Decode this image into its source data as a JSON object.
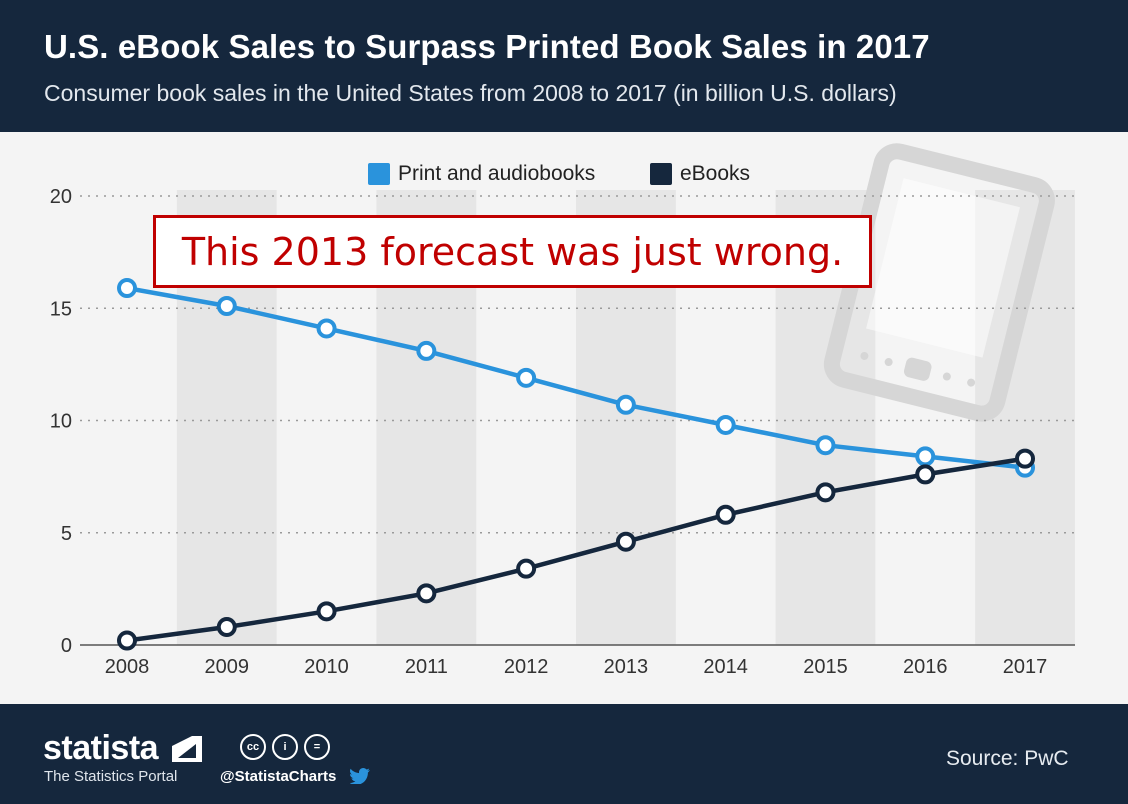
{
  "header": {
    "title": "U.S. eBook Sales to Surpass Printed Book Sales in 2017",
    "subtitle": "Consumer book sales in the United States from 2008 to 2017 (in billion U.S. dollars)"
  },
  "annotation": {
    "text": "This 2013 forecast was just wrong."
  },
  "colors": {
    "print": "#2a93dc",
    "ebooks": "#15273d",
    "header_bg": "#15273d",
    "annotation": "#c00000",
    "stripe": "#e6e6e6",
    "plot_bg": "#f4f4f4"
  },
  "chart_data": {
    "type": "line",
    "title": "U.S. eBook Sales to Surpass Printed Book Sales in 2017",
    "xlabel": "",
    "ylabel": "",
    "ylim": [
      0,
      20
    ],
    "yticks": [
      "0",
      "5",
      "10",
      "15",
      "20"
    ],
    "categories": [
      "2008",
      "2009",
      "2010",
      "2011",
      "2012",
      "2013",
      "2014",
      "2015",
      "2016",
      "2017"
    ],
    "legend_position": "top-center",
    "series": [
      {
        "name": "Print and audiobooks",
        "values": [
          15.9,
          15.1,
          14.1,
          13.1,
          11.9,
          10.7,
          9.8,
          8.9,
          8.4,
          7.9
        ]
      },
      {
        "name": "eBooks",
        "values": [
          0.2,
          0.8,
          1.5,
          2.3,
          3.4,
          4.6,
          5.8,
          6.8,
          7.6,
          8.3
        ]
      }
    ]
  },
  "footer": {
    "brand": "statista",
    "tagline": "The Statistics Portal",
    "social": "@StatistaCharts",
    "source": "Source: PwC",
    "license_icons": [
      "cc",
      "i",
      "="
    ]
  }
}
